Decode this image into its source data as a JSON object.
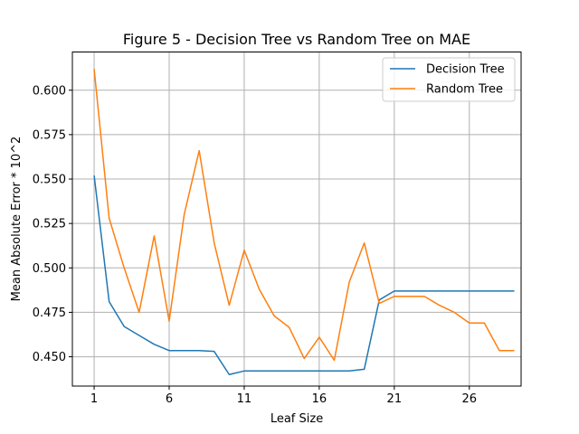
{
  "chart_data": {
    "type": "line",
    "title": "Figure 5 - Decision Tree vs Random Tree on MAE",
    "xlabel": "Leaf Size",
    "ylabel": "Mean Absolute Error * 10^2",
    "xlim": [
      -0.45,
      29.45
    ],
    "ylim": [
      0.4335,
      0.6215
    ],
    "xticks": [
      1,
      6,
      11,
      16,
      21,
      26
    ],
    "yticks": [
      0.45,
      0.475,
      0.5,
      0.525,
      0.55,
      0.575,
      0.6
    ],
    "ytick_labels": [
      "0.450",
      "0.475",
      "0.500",
      "0.525",
      "0.550",
      "0.575",
      "0.600"
    ],
    "grid": true,
    "legend_position": "top-right",
    "x": [
      1,
      2,
      3,
      4,
      5,
      6,
      7,
      8,
      9,
      10,
      11,
      12,
      13,
      14,
      15,
      16,
      17,
      18,
      19,
      20,
      21,
      22,
      23,
      24,
      25,
      26,
      27,
      28,
      29
    ],
    "series": [
      {
        "name": "Decision Tree",
        "color": "#1f77b4",
        "values": [
          0.552,
          0.481,
          0.467,
          0.462,
          0.457,
          0.4535,
          0.4535,
          0.4535,
          0.453,
          0.44,
          0.442,
          0.442,
          0.442,
          0.442,
          0.442,
          0.442,
          0.442,
          0.442,
          0.443,
          0.482,
          0.487,
          0.487,
          0.487,
          0.487,
          0.487,
          0.487,
          0.487,
          0.487,
          0.487
        ]
      },
      {
        "name": "Random Tree",
        "color": "#ff7f0e",
        "values": [
          0.612,
          0.528,
          0.5,
          0.475,
          0.518,
          0.47,
          0.53,
          0.566,
          0.514,
          0.479,
          0.51,
          0.488,
          0.473,
          0.4665,
          0.449,
          0.461,
          0.448,
          0.492,
          0.514,
          0.48,
          0.484,
          0.484,
          0.484,
          0.479,
          0.475,
          0.469,
          0.469,
          0.4535,
          0.4535
        ]
      }
    ]
  }
}
